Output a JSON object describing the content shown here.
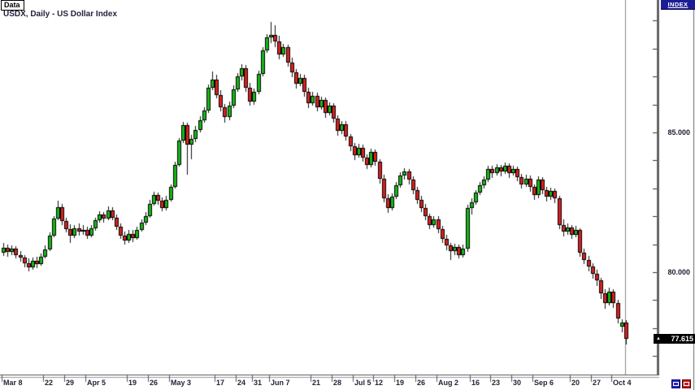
{
  "window": {
    "tab_label": "Data",
    "title": "USDX, Daily - US Dollar Index",
    "index_button_label": "INDEX"
  },
  "price_axis": {
    "current_price_arrow": "▲",
    "current_price_text": "77.615"
  },
  "controls": {
    "pan_button_icon": "horizontal-slider-icon",
    "scroll_button_icon": "horizontal-slider-icon"
  },
  "chart_data": {
    "type": "candlestick",
    "symbol": "USDX",
    "timeframe": "Daily",
    "title": "USDX, Daily - US Dollar Index",
    "grid": false,
    "colors": {
      "up": "#15b915",
      "down": "#d92121",
      "wick": "#111111",
      "axis": "#777777",
      "accent_navy": "#1c1c96"
    },
    "y_axis": {
      "labels": [
        {
          "text": "85.000",
          "price": 85.0
        },
        {
          "text": "80.000",
          "price": 80.0
        }
      ],
      "tick_prices": [
        77,
        78,
        79,
        80,
        81,
        82,
        83,
        84,
        85,
        86,
        87,
        88,
        89
      ],
      "ylim": [
        77.0,
        89.3
      ]
    },
    "last_price": {
      "text": "77.615",
      "value": 77.615
    },
    "x_axis": {
      "ticks": [
        {
          "label": "Mar 8",
          "i": 0
        },
        {
          "label": "22",
          "i": 10
        },
        {
          "label": "29",
          "i": 15
        },
        {
          "label": "Apr 5",
          "i": 20
        },
        {
          "label": "19",
          "i": 30
        },
        {
          "label": "26",
          "i": 35
        },
        {
          "label": "May 3",
          "i": 40
        },
        {
          "label": "17",
          "i": 51
        },
        {
          "label": "24",
          "i": 56
        },
        {
          "label": "31",
          "i": 60
        },
        {
          "label": "Jun 7",
          "i": 64
        },
        {
          "label": "21",
          "i": 74
        },
        {
          "label": "28",
          "i": 79
        },
        {
          "label": "Jul 5",
          "i": 84
        },
        {
          "label": "12",
          "i": 89
        },
        {
          "label": "19",
          "i": 94
        },
        {
          "label": "26",
          "i": 99
        },
        {
          "label": "Aug 2",
          "i": 104
        },
        {
          "label": "16",
          "i": 112
        },
        {
          "label": "23",
          "i": 117
        },
        {
          "label": "30",
          "i": 122
        },
        {
          "label": "Sep 6",
          "i": 127
        },
        {
          "label": "20",
          "i": 136
        },
        {
          "label": "27",
          "i": 141
        },
        {
          "label": "Oct 4",
          "i": 146
        }
      ]
    },
    "candles": [
      [
        80.7,
        81.05,
        80.58,
        80.88
      ],
      [
        80.88,
        80.98,
        80.55,
        80.72
      ],
      [
        80.72,
        80.96,
        80.6,
        80.85
      ],
      [
        80.85,
        80.92,
        80.48,
        80.62
      ],
      [
        80.62,
        80.75,
        80.38,
        80.52
      ],
      [
        80.52,
        80.6,
        80.18,
        80.32
      ],
      [
        80.32,
        80.48,
        80.02,
        80.18
      ],
      [
        80.18,
        80.52,
        80.08,
        80.42
      ],
      [
        80.42,
        80.55,
        80.15,
        80.3
      ],
      [
        80.3,
        80.68,
        80.22,
        80.56
      ],
      [
        80.56,
        80.95,
        80.48,
        80.82
      ],
      [
        80.82,
        81.42,
        80.75,
        81.32
      ],
      [
        81.32,
        82.02,
        81.25,
        81.92
      ],
      [
        81.92,
        82.55,
        81.85,
        82.32
      ],
      [
        82.32,
        82.45,
        81.7,
        81.82
      ],
      [
        81.82,
        81.95,
        81.42,
        81.55
      ],
      [
        81.55,
        81.72,
        81.05,
        81.32
      ],
      [
        81.32,
        81.7,
        81.22,
        81.58
      ],
      [
        81.58,
        81.75,
        81.32,
        81.45
      ],
      [
        81.45,
        81.68,
        81.35,
        81.52
      ],
      [
        81.52,
        81.62,
        81.18,
        81.32
      ],
      [
        81.32,
        81.68,
        81.25,
        81.56
      ],
      [
        81.56,
        81.95,
        81.48,
        81.85
      ],
      [
        81.85,
        82.18,
        81.78,
        82.05
      ],
      [
        82.05,
        82.15,
        81.78,
        81.92
      ],
      [
        81.92,
        82.35,
        81.85,
        82.22
      ],
      [
        82.22,
        82.32,
        81.85,
        81.95
      ],
      [
        81.95,
        82.05,
        81.5,
        81.62
      ],
      [
        81.62,
        81.75,
        81.2,
        81.32
      ],
      [
        81.32,
        81.45,
        80.98,
        81.12
      ],
      [
        81.12,
        81.5,
        81.05,
        81.38
      ],
      [
        81.38,
        81.52,
        81.08,
        81.22
      ],
      [
        81.22,
        81.62,
        81.15,
        81.52
      ],
      [
        81.52,
        81.9,
        81.45,
        81.78
      ],
      [
        81.78,
        82.15,
        81.7,
        82.02
      ],
      [
        82.02,
        82.58,
        81.95,
        82.45
      ],
      [
        82.45,
        82.88,
        82.38,
        82.75
      ],
      [
        82.75,
        82.85,
        82.42,
        82.55
      ],
      [
        82.55,
        82.68,
        82.18,
        82.3
      ],
      [
        82.3,
        82.72,
        82.22,
        82.6
      ],
      [
        82.6,
        83.15,
        82.52,
        83.05
      ],
      [
        83.05,
        83.95,
        82.98,
        83.85
      ],
      [
        83.85,
        84.8,
        83.78,
        84.7
      ],
      [
        84.7,
        85.38,
        84.62,
        85.25
      ],
      [
        85.25,
        85.35,
        83.5,
        84.55
      ],
      [
        84.55,
        84.92,
        84.05,
        84.78
      ],
      [
        84.78,
        85.22,
        84.65,
        85.1
      ],
      [
        85.1,
        85.58,
        85.0,
        85.45
      ],
      [
        85.45,
        85.9,
        85.35,
        85.78
      ],
      [
        85.78,
        86.72,
        85.7,
        86.6
      ],
      [
        86.6,
        87.18,
        86.5,
        86.9
      ],
      [
        86.9,
        87.05,
        86.22,
        86.35
      ],
      [
        86.35,
        86.5,
        85.75,
        85.9
      ],
      [
        85.9,
        86.02,
        85.35,
        85.55
      ],
      [
        85.55,
        86.1,
        85.45,
        85.95
      ],
      [
        85.95,
        86.7,
        85.88,
        86.55
      ],
      [
        86.55,
        87.12,
        86.45,
        87.0
      ],
      [
        87.0,
        87.45,
        86.85,
        87.3
      ],
      [
        87.3,
        87.42,
        86.45,
        86.6
      ],
      [
        86.6,
        86.78,
        85.95,
        86.1
      ],
      [
        86.1,
        86.58,
        85.98,
        86.45
      ],
      [
        86.45,
        87.22,
        86.38,
        87.1
      ],
      [
        87.1,
        88.05,
        87.02,
        87.95
      ],
      [
        87.95,
        88.52,
        87.85,
        88.4
      ],
      [
        88.4,
        88.95,
        88.2,
        88.5
      ],
      [
        88.5,
        88.85,
        88.05,
        88.25
      ],
      [
        88.25,
        88.45,
        87.62,
        87.8
      ],
      [
        87.8,
        88.18,
        87.7,
        88.05
      ],
      [
        88.05,
        88.15,
        87.35,
        87.5
      ],
      [
        87.5,
        87.68,
        86.98,
        87.15
      ],
      [
        87.15,
        87.28,
        86.58,
        86.75
      ],
      [
        86.75,
        87.08,
        86.65,
        86.95
      ],
      [
        86.95,
        87.05,
        86.28,
        86.45
      ],
      [
        86.45,
        86.6,
        85.88,
        86.05
      ],
      [
        86.05,
        86.45,
        85.95,
        86.3
      ],
      [
        86.3,
        86.42,
        85.75,
        85.9
      ],
      [
        85.9,
        86.28,
        85.82,
        86.15
      ],
      [
        86.15,
        86.25,
        85.52,
        85.7
      ],
      [
        85.7,
        86.08,
        85.6,
        85.95
      ],
      [
        85.95,
        86.05,
        85.35,
        85.5
      ],
      [
        85.5,
        85.62,
        84.88,
        85.05
      ],
      [
        85.05,
        85.42,
        84.95,
        85.3
      ],
      [
        85.3,
        85.4,
        84.7,
        84.85
      ],
      [
        84.85,
        84.95,
        84.32,
        84.5
      ],
      [
        84.5,
        84.62,
        84.02,
        84.2
      ],
      [
        84.2,
        84.58,
        84.1,
        84.45
      ],
      [
        84.45,
        84.55,
        83.95,
        84.1
      ],
      [
        84.1,
        84.22,
        83.68,
        83.85
      ],
      [
        83.85,
        84.42,
        83.75,
        84.3
      ],
      [
        84.3,
        84.4,
        83.8,
        83.95
      ],
      [
        83.95,
        84.05,
        83.18,
        83.35
      ],
      [
        83.35,
        83.48,
        82.5,
        82.65
      ],
      [
        82.65,
        82.78,
        82.12,
        82.3
      ],
      [
        82.3,
        82.82,
        82.22,
        82.7
      ],
      [
        82.7,
        83.22,
        82.62,
        83.1
      ],
      [
        83.1,
        83.58,
        83.02,
        83.45
      ],
      [
        83.45,
        83.72,
        83.3,
        83.6
      ],
      [
        83.6,
        83.7,
        83.15,
        83.3
      ],
      [
        83.3,
        83.42,
        82.8,
        82.95
      ],
      [
        82.95,
        83.05,
        82.45,
        82.6
      ],
      [
        82.6,
        82.72,
        82.15,
        82.3
      ],
      [
        82.3,
        82.45,
        81.85,
        82.0
      ],
      [
        82.0,
        82.1,
        81.55,
        81.7
      ],
      [
        81.7,
        82.02,
        81.6,
        81.9
      ],
      [
        81.9,
        82.0,
        81.4,
        81.55
      ],
      [
        81.55,
        81.65,
        81.05,
        81.2
      ],
      [
        81.2,
        81.35,
        80.78,
        80.95
      ],
      [
        80.95,
        81.05,
        80.45,
        80.75
      ],
      [
        80.75,
        81.02,
        80.62,
        80.9
      ],
      [
        80.9,
        81.0,
        80.48,
        80.6
      ],
      [
        80.6,
        80.98,
        80.52,
        80.85
      ],
      [
        80.85,
        82.4,
        80.72,
        82.3
      ],
      [
        82.3,
        82.65,
        82.05,
        82.5
      ],
      [
        82.5,
        82.95,
        82.4,
        82.85
      ],
      [
        82.85,
        83.22,
        82.75,
        83.1
      ],
      [
        83.1,
        83.42,
        83.0,
        83.3
      ],
      [
        83.3,
        83.8,
        83.22,
        83.7
      ],
      [
        83.7,
        83.82,
        83.38,
        83.55
      ],
      [
        83.55,
        83.88,
        83.45,
        83.75
      ],
      [
        83.75,
        83.85,
        83.42,
        83.6
      ],
      [
        83.6,
        83.92,
        83.52,
        83.8
      ],
      [
        83.8,
        83.9,
        83.38,
        83.55
      ],
      [
        83.55,
        83.82,
        83.45,
        83.7
      ],
      [
        83.7,
        83.78,
        83.25,
        83.4
      ],
      [
        83.4,
        83.52,
        82.98,
        83.15
      ],
      [
        83.15,
        83.48,
        83.05,
        83.35
      ],
      [
        83.35,
        83.45,
        82.88,
        83.05
      ],
      [
        83.05,
        83.15,
        82.58,
        82.75
      ],
      [
        82.75,
        83.42,
        82.65,
        83.3
      ],
      [
        83.3,
        83.4,
        82.78,
        82.95
      ],
      [
        82.95,
        83.05,
        82.52,
        82.7
      ],
      [
        82.7,
        83.02,
        82.6,
        82.9
      ],
      [
        82.9,
        83.0,
        82.48,
        82.65
      ],
      [
        82.65,
        82.72,
        81.55,
        81.7
      ],
      [
        81.7,
        81.88,
        81.28,
        81.45
      ],
      [
        81.45,
        81.75,
        81.35,
        81.6
      ],
      [
        81.6,
        81.7,
        81.18,
        81.35
      ],
      [
        81.35,
        81.65,
        81.25,
        81.5
      ],
      [
        81.5,
        81.58,
        80.55,
        80.7
      ],
      [
        80.7,
        80.85,
        80.28,
        80.45
      ],
      [
        80.45,
        80.58,
        80.02,
        80.2
      ],
      [
        80.2,
        80.32,
        79.78,
        79.95
      ],
      [
        79.95,
        80.08,
        79.52,
        79.7
      ],
      [
        79.7,
        79.8,
        79.05,
        79.25
      ],
      [
        79.25,
        79.38,
        78.68,
        78.9
      ],
      [
        78.9,
        79.45,
        78.8,
        79.3
      ],
      [
        79.3,
        79.4,
        78.72,
        78.9
      ],
      [
        78.9,
        79.0,
        78.18,
        78.35
      ],
      [
        78.05,
        78.32,
        77.85,
        78.2
      ],
      [
        78.2,
        78.28,
        77.4,
        77.62
      ]
    ]
  }
}
